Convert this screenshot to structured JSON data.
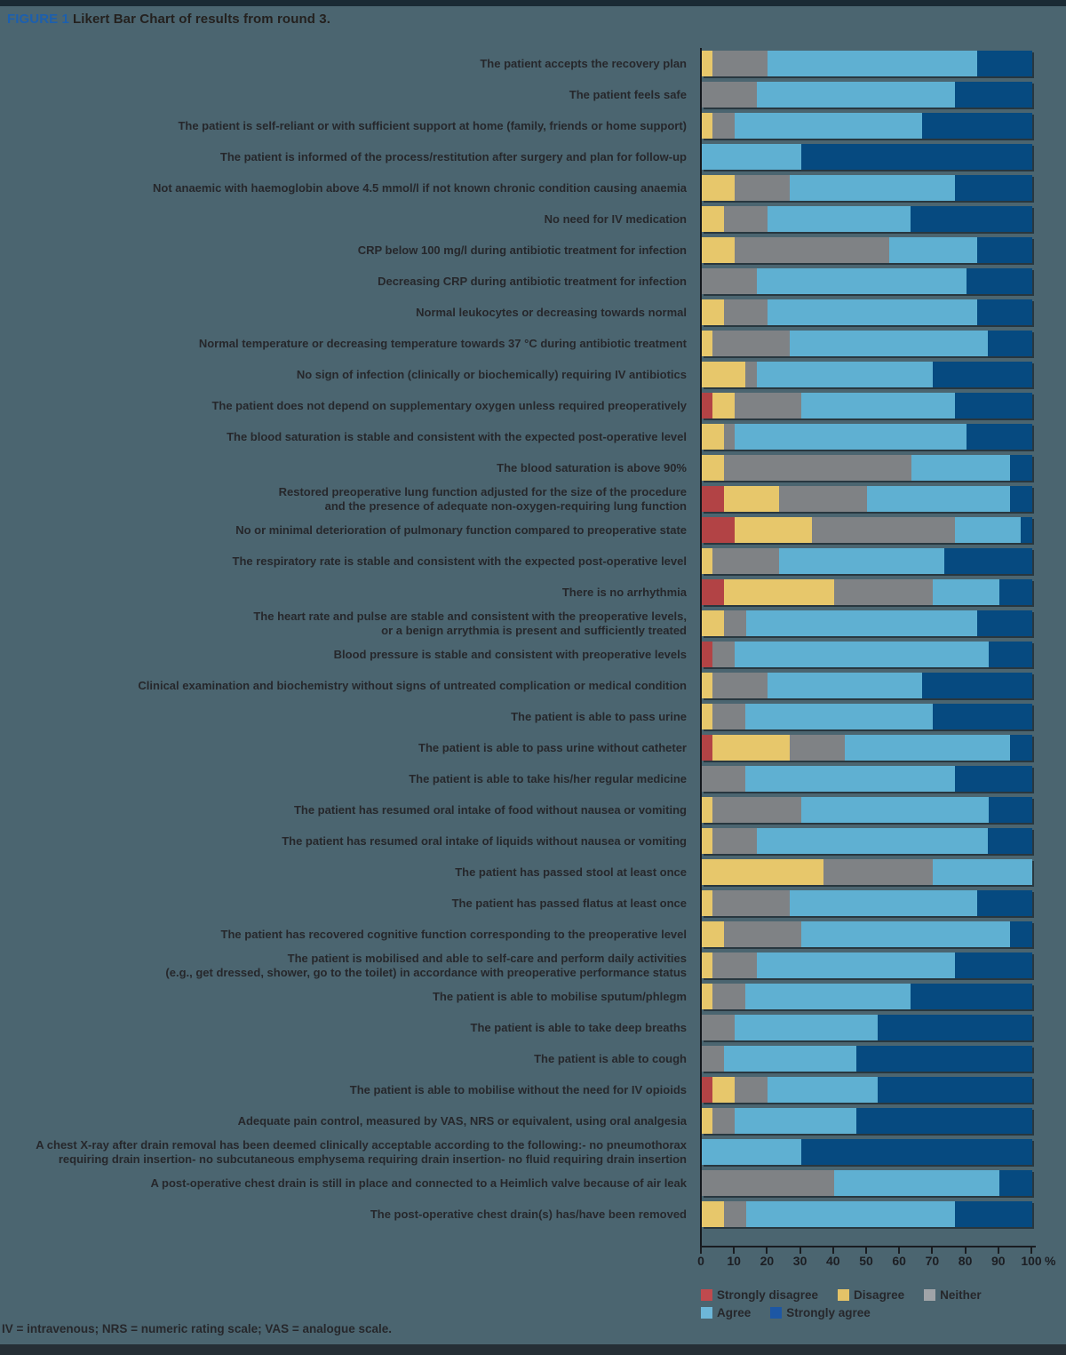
{
  "figure": {
    "label": "FIGURE 1",
    "caption": "Likert Bar Chart of results from round 3."
  },
  "footnote": "IV = intravenous; NRS = numeric rating scale; VAS = analogue scale.",
  "axis": {
    "ticks": [
      0,
      10,
      20,
      30,
      40,
      50,
      60,
      70,
      80,
      90,
      100
    ],
    "unit": "%"
  },
  "legend": [
    {
      "label": "Strongly disagree",
      "color": "#c04a4e"
    },
    {
      "label": "Disagree",
      "color": "#e4c368"
    },
    {
      "label": "Neither",
      "color": "#a0a4a8"
    },
    {
      "label": "Agree",
      "color": "#6db7d9"
    },
    {
      "label": "Strongly agree",
      "color": "#1d57a4"
    }
  ],
  "colors": {
    "background": "#4b6570",
    "strongly_disagree": "#b24345",
    "disagree": "#e7c76b",
    "neither": "#7f8285",
    "agree": "#5fb0d2",
    "strongly_agree": "#064a80",
    "figure_label_blue": "#1c5fae"
  },
  "chart_data": {
    "type": "bar",
    "stacked": true,
    "orientation": "horizontal",
    "title": "Likert Bar Chart of results from round 3.",
    "xlabel": "%",
    "xlim": [
      0,
      100
    ],
    "grid": false,
    "legend_position": "bottom",
    "categories": [
      "The patient accepts the recovery plan",
      "The patient feels safe",
      "The patient is self-reliant or with sufficient support at home (family, friends or home support)",
      "The patient is informed of the process/restitution after surgery and plan for follow-up",
      "Not anaemic with haemoglobin above 4.5 mmol/l if not known chronic condition causing anaemia",
      "No need for IV medication",
      "CRP below 100 mg/l during antibiotic treatment for infection",
      "Decreasing CRP during antibiotic treatment for infection",
      "Normal leukocytes or decreasing towards normal",
      "Normal temperature or decreasing temperature towards 37 °C during antibiotic treatment",
      "No sign of infection (clinically or biochemically) requiring IV antibiotics",
      "The patient does not depend on supplementary oxygen unless required preoperatively",
      "The blood saturation is stable and consistent with the expected post-operative level",
      "The blood saturation is above 90%",
      "Restored preoperative lung function adjusted for the size of the procedure\nand the presence of adequate non-oxygen-requiring lung function",
      "No or minimal deterioration of pulmonary function compared to preoperative state",
      "The respiratory rate is stable and consistent with the expected post-operative level",
      "There is no arrhythmia",
      "The heart rate and pulse are stable and consistent with the preoperative levels,\nor a benign arrythmia is present and sufficiently treated",
      "Blood pressure is stable and consistent with preoperative levels",
      "Clinical examination and biochemistry without signs of untreated complication or medical condition",
      "The patient is able to pass urine",
      "The patient is able to pass urine without catheter",
      "The patient is able to take his/her regular medicine",
      "The patient has resumed oral intake of food without nausea or vomiting",
      "The patient has resumed oral intake of liquids without nausea or vomiting",
      "The patient has passed stool at least once",
      "The patient has passed flatus at least once",
      "The patient has recovered cognitive function corresponding to the preoperative level",
      "The patient is mobilised and able to self-care and perform daily activities\n(e.g., get dressed, shower, go to the toilet) in accordance with preoperative performance status",
      "The patient is able to mobilise sputum/phlegm",
      "The patient is able to take deep breaths",
      "The patient is able to cough",
      "The patient is able to mobilise without the need for IV opioids",
      "Adequate pain control, measured by VAS, NRS or equivalent, using oral analgesia",
      "A chest X-ray after drain removal has been deemed clinically acceptable according to the following:- no pneumothorax\nrequiring drain insertion- no subcutaneous emphysema requiring drain insertion- no fluid requiring drain insertion",
      "A post-operative chest drain is still in place and connected to a Heimlich valve because of air leak",
      "The post-operative chest drain(s) has/have been removed"
    ],
    "series": [
      {
        "name": "Strongly disagree",
        "color": "#b24345",
        "values": [
          0,
          0,
          0,
          0,
          0,
          0,
          0,
          0,
          0,
          0,
          0,
          3.3,
          0,
          0,
          6.7,
          10,
          0,
          6.7,
          0,
          3.3,
          0,
          0,
          3.3,
          0,
          0,
          0,
          0,
          0,
          0,
          0,
          0,
          0,
          0,
          3.3,
          0,
          0,
          0,
          0
        ]
      },
      {
        "name": "Disagree",
        "color": "#e7c76b",
        "values": [
          3.3,
          0,
          3.3,
          0,
          10,
          6.7,
          10,
          0,
          6.7,
          3.3,
          13.3,
          6.7,
          6.7,
          6.7,
          16.7,
          23.3,
          3.3,
          33.3,
          6.7,
          0,
          3.3,
          3.3,
          23.3,
          0,
          3.3,
          3.3,
          36.7,
          3.3,
          6.7,
          3.3,
          3.3,
          0,
          0,
          6.7,
          3.3,
          0,
          0,
          6.7
        ]
      },
      {
        "name": "Neither",
        "color": "#7f8285",
        "values": [
          16.7,
          16.7,
          6.7,
          0,
          16.7,
          13.3,
          46.7,
          16.7,
          13.3,
          23.3,
          3.3,
          20,
          3.3,
          56.7,
          26.7,
          43.3,
          20,
          30,
          6.7,
          6.7,
          16.7,
          10,
          16.7,
          13.3,
          26.7,
          13.3,
          33.3,
          23.3,
          23.3,
          13.3,
          10,
          10,
          6.7,
          10,
          6.7,
          0,
          40,
          6.7
        ]
      },
      {
        "name": "Agree",
        "color": "#5fb0d2",
        "values": [
          63.3,
          60,
          56.7,
          30,
          50,
          43.3,
          26.7,
          63.3,
          63.3,
          60,
          53.3,
          46.7,
          70,
          30,
          43.3,
          20,
          50,
          20,
          70,
          76.7,
          46.7,
          56.7,
          50,
          63.3,
          56.7,
          70,
          30,
          56.7,
          63.3,
          60,
          50,
          43.3,
          40,
          33.3,
          36.7,
          30,
          50,
          63.3
        ]
      },
      {
        "name": "Strongly agree",
        "color": "#064a80",
        "values": [
          16.7,
          23.3,
          33.3,
          70,
          23.3,
          36.7,
          16.7,
          20,
          16.7,
          13.3,
          30,
          23.3,
          20,
          6.7,
          6.7,
          3.3,
          26.7,
          10,
          16.7,
          13.3,
          33.3,
          30,
          6.7,
          23.3,
          13.3,
          13.3,
          0,
          16.7,
          6.7,
          23.3,
          36.7,
          46.7,
          53.3,
          46.7,
          53.3,
          70,
          10,
          23.3
        ]
      }
    ]
  }
}
